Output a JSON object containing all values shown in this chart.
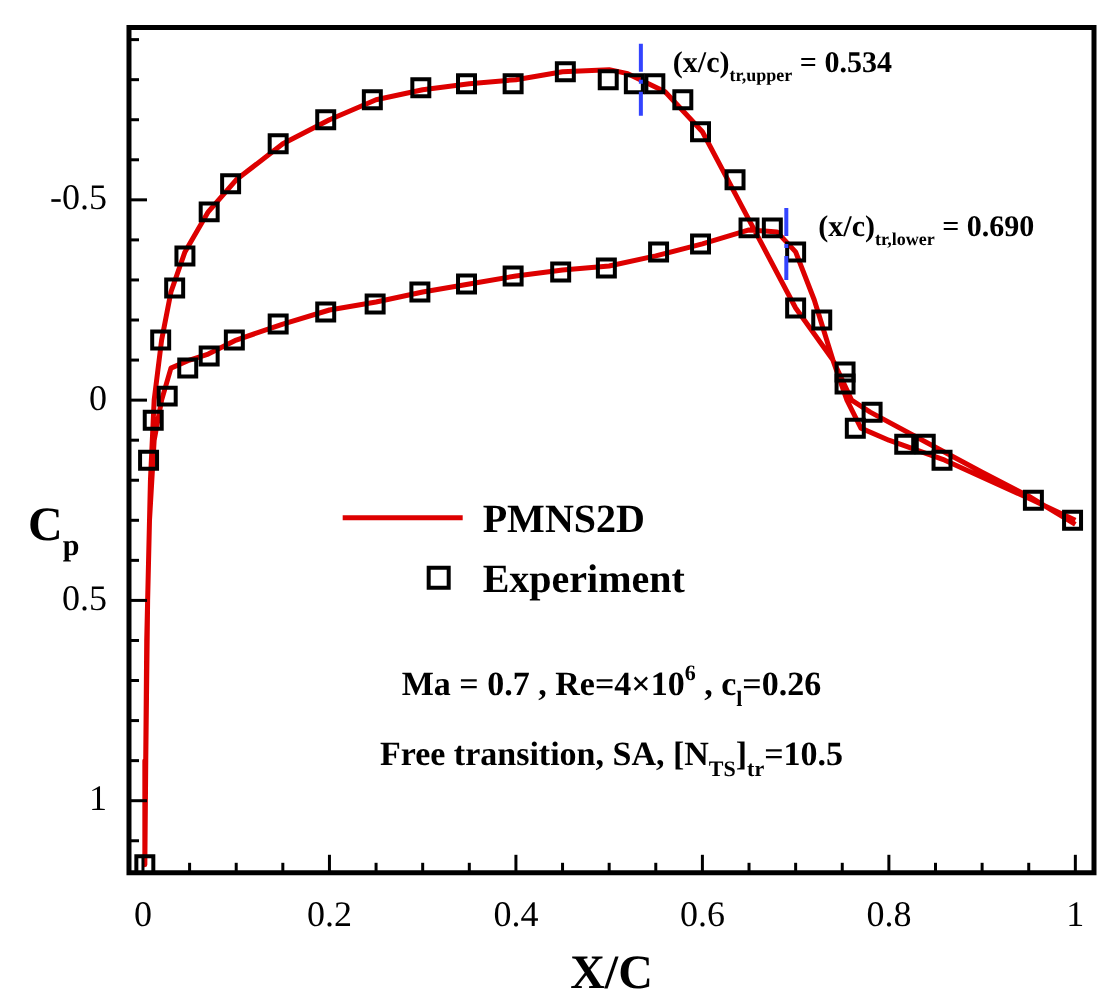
{
  "chart_data": {
    "type": "line",
    "xlabel": "X/C",
    "ylabel": "C$_{p}$",
    "xlim": [
      -0.015,
      1.02
    ],
    "ylim": [
      1.18,
      -0.93
    ],
    "xticks": [
      0,
      {
        "value": 0.05,
        "label": null
      },
      {
        "value": 0.1,
        "label": null
      },
      {
        "value": 0.15,
        "label": null
      },
      0.2,
      {
        "value": 0.25,
        "label": null
      },
      {
        "value": 0.3,
        "label": null
      },
      {
        "value": 0.35,
        "label": null
      },
      0.4,
      {
        "value": 0.45,
        "label": null
      },
      {
        "value": 0.5,
        "label": null
      },
      {
        "value": 0.55,
        "label": null
      },
      0.6,
      {
        "value": 0.65,
        "label": null
      },
      {
        "value": 0.7,
        "label": null
      },
      {
        "value": 0.75,
        "label": null
      },
      0.8,
      {
        "value": 0.85,
        "label": null
      },
      {
        "value": 0.9,
        "label": null
      },
      {
        "value": 0.95,
        "label": null
      },
      1
    ],
    "yticks": [
      {
        "value": -0.9,
        "label": null
      },
      {
        "value": -0.8,
        "label": null
      },
      {
        "value": -0.7,
        "label": null
      },
      {
        "value": -0.6,
        "label": null
      },
      -0.5,
      {
        "value": -0.4,
        "label": null
      },
      {
        "value": -0.3,
        "label": null
      },
      {
        "value": -0.2,
        "label": null
      },
      {
        "value": -0.1,
        "label": null
      },
      0,
      {
        "value": 0.1,
        "label": null
      },
      {
        "value": 0.2,
        "label": null
      },
      {
        "value": 0.3,
        "label": null
      },
      {
        "value": 0.4,
        "label": null
      },
      0.5,
      {
        "value": 0.6,
        "label": null
      },
      {
        "value": 0.7,
        "label": null
      },
      {
        "value": 0.8,
        "label": null
      },
      {
        "value": 0.9,
        "label": null
      },
      1,
      {
        "value": 1.1,
        "label": null
      }
    ],
    "legend": "center",
    "series": [
      {
        "name": "PMNS2D",
        "type": "line",
        "color": "#dd0000",
        "marker": "none",
        "line_style": "solid",
        "x": [
          1.0,
          0.95,
          0.86,
          0.8,
          0.77,
          0.755,
          0.74,
          0.7,
          0.65,
          0.6,
          0.56,
          0.52,
          0.5,
          0.45,
          0.4,
          0.35,
          0.3,
          0.25,
          0.2,
          0.15,
          0.1,
          0.07,
          0.045,
          0.03,
          0.02,
          0.012,
          0.008,
          0.005,
          0.003,
          0.002,
          0.004,
          0.007,
          0.012,
          0.02,
          0.03,
          0.05,
          0.07,
          0.1,
          0.15,
          0.2,
          0.25,
          0.3,
          0.35,
          0.4,
          0.45,
          0.5,
          0.55,
          0.6,
          0.65,
          0.68,
          0.7,
          0.72,
          0.74,
          0.76,
          0.78,
          0.84,
          0.9,
          0.95,
          1.0
        ],
        "values": [
          0.3,
          0.245,
          0.15,
          0.1,
          0.07,
          0.0,
          -0.1,
          -0.23,
          -0.45,
          -0.67,
          -0.77,
          -0.815,
          -0.825,
          -0.82,
          -0.8,
          -0.79,
          -0.775,
          -0.75,
          -0.7,
          -0.64,
          -0.55,
          -0.47,
          -0.37,
          -0.27,
          -0.15,
          0.0,
          0.2,
          0.5,
          0.9,
          1.16,
          0.6,
          0.3,
          0.1,
          0.0,
          -0.08,
          -0.1,
          -0.115,
          -0.15,
          -0.19,
          -0.225,
          -0.245,
          -0.27,
          -0.29,
          -0.31,
          -0.325,
          -0.335,
          -0.36,
          -0.39,
          -0.425,
          -0.42,
          -0.37,
          -0.25,
          -0.1,
          0.0,
          0.03,
          0.105,
          0.18,
          0.24,
          0.31
        ]
      },
      {
        "name": "Experiment",
        "type": "scatter",
        "color": "#000000",
        "marker": "square",
        "x": [
          0.002,
          0.006,
          0.011,
          0.019,
          0.034,
          0.045,
          0.071,
          0.094,
          0.145,
          0.196,
          0.246,
          0.298,
          0.347,
          0.397,
          0.453,
          0.499,
          0.527,
          0.549,
          0.579,
          0.598,
          0.635,
          0.7,
          0.753,
          0.764,
          0.817,
          0.857,
          0.955,
          0.997,
          0.026,
          0.048,
          0.071,
          0.098,
          0.145,
          0.196,
          0.249,
          0.297,
          0.347,
          0.397,
          0.448,
          0.497,
          0.553,
          0.598,
          0.65,
          0.675,
          0.7,
          0.728,
          0.753,
          0.782,
          0.839
        ],
        "values": [
          1.16,
          0.15,
          0.05,
          -0.15,
          -0.28,
          -0.36,
          -0.47,
          -0.54,
          -0.64,
          -0.7,
          -0.75,
          -0.78,
          -0.79,
          -0.79,
          -0.82,
          -0.8,
          -0.79,
          -0.79,
          -0.75,
          -0.67,
          -0.55,
          -0.23,
          -0.07,
          0.07,
          0.11,
          0.15,
          0.25,
          0.3,
          -0.01,
          -0.08,
          -0.11,
          -0.15,
          -0.19,
          -0.22,
          -0.24,
          -0.27,
          -0.29,
          -0.31,
          -0.32,
          -0.33,
          -0.37,
          -0.39,
          -0.43,
          -0.43,
          -0.37,
          -0.2,
          -0.04,
          0.03,
          0.11
        ]
      }
    ],
    "annotations": [
      {
        "text": "(x/c)$_{tr,upper}$ = 0.534",
        "x": 0.534,
        "y": -0.8
      },
      {
        "text": "(x/c)$_{tr,lower}$ = 0.690",
        "x": 0.69,
        "y": -0.39
      },
      "Ma = 0.7 , Re=4×10$^{6}$ , c$_{l}$=0.26",
      "Free transition, SA, [N$_{TS}$]$_{tr}$=10.5"
    ]
  }
}
